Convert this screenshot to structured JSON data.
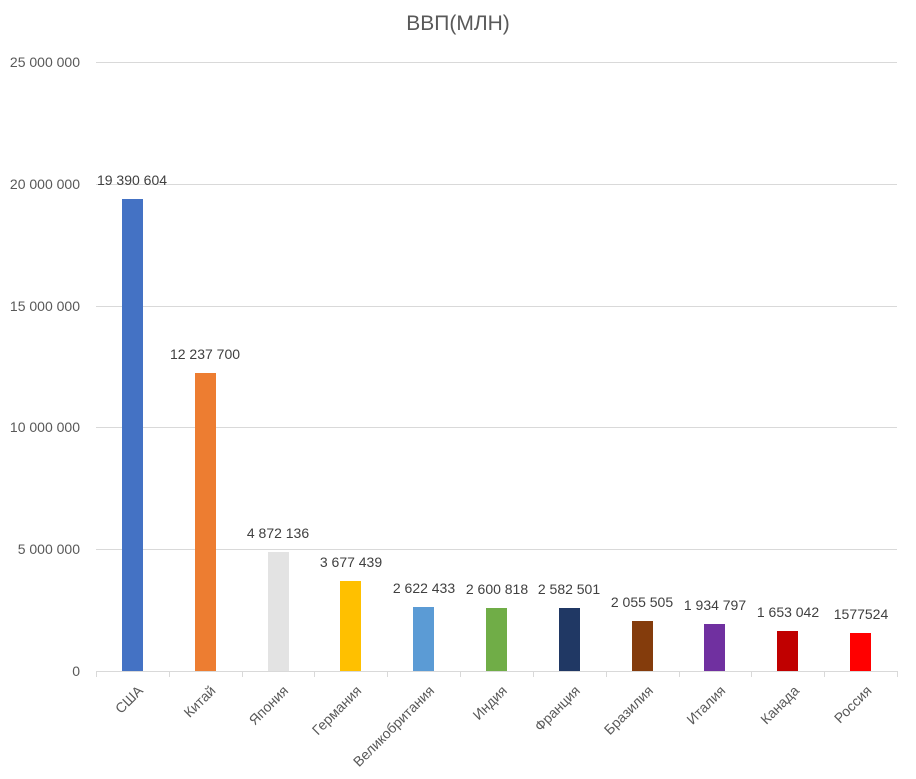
{
  "chart_data": {
    "type": "bar",
    "title": "ВВП(МЛН)",
    "xlabel": "",
    "ylabel": "",
    "ylim": [
      0,
      25000000
    ],
    "yticks": [
      0,
      5000000,
      10000000,
      15000000,
      20000000,
      25000000
    ],
    "ytick_labels": [
      "0",
      "5 000 000",
      "10 000 000",
      "15 000 000",
      "20 000 000",
      "25 000 000"
    ],
    "grid": true,
    "legend": null,
    "categories": [
      "США",
      "Китай",
      "Япония",
      "Германия",
      "Великобритания",
      "Индия",
      "Франция",
      "Бразилия",
      "Италия",
      "Канада",
      "Россия"
    ],
    "values": [
      19390604,
      12237700,
      4872136,
      3677439,
      2622433,
      2600818,
      2582501,
      2055505,
      1934797,
      1653042,
      1577524
    ],
    "data_labels": [
      "19 390 604",
      "12 237 700",
      "4 872 136",
      "3 677 439",
      "2 622 433",
      "2 600 818",
      "2 582 501",
      "2 055 505",
      "1 934 797",
      "1 653 042",
      "1577524"
    ],
    "colors": [
      "#4472C4",
      "#ED7D31",
      "#E3E3E3",
      "#FFC000",
      "#5B9BD5",
      "#70AD47",
      "#203864",
      "#843C0C",
      "#7030A0",
      "#C00000",
      "#FF0000"
    ]
  },
  "colors": {
    "gridline": "#D9D9D9",
    "text": "#595959",
    "background": "#FFFFFF"
  }
}
